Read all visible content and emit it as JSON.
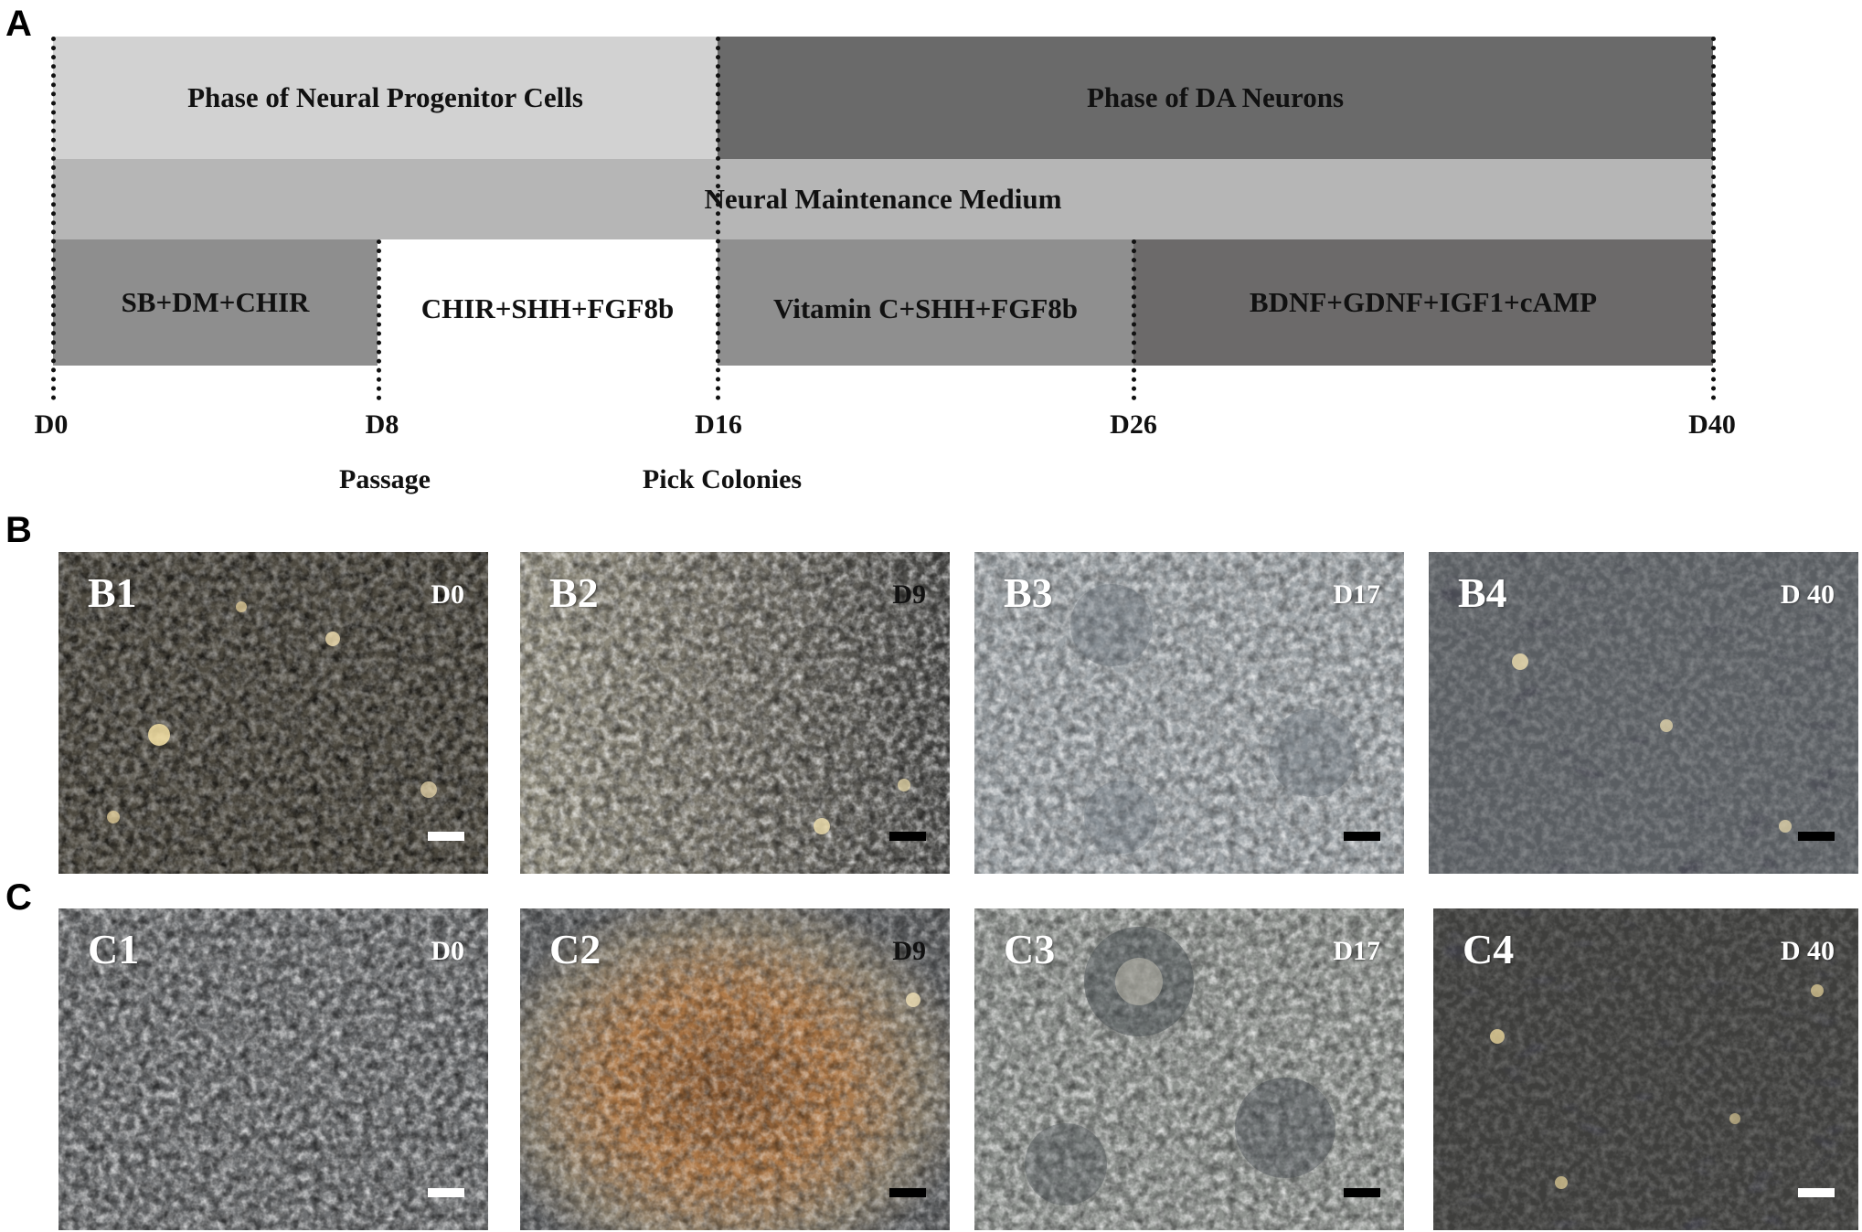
{
  "panel_a": {
    "letter": "A",
    "phase_progenitor": "Phase of Neural Progenitor Cells",
    "phase_da": "Phase of DA Neurons",
    "maintenance": "Neural Maintenance Medium",
    "stages": [
      {
        "label": "SB+DM+CHIR",
        "color": "#8e8e8e"
      },
      {
        "label": "CHIR+SHH+FGF8b",
        "color": "#ffffff"
      },
      {
        "label": "Vitamin C+SHH+FGF8b",
        "color": "#8f8f8f"
      },
      {
        "label": "BDNF+GDNF+IGF1+cAMP",
        "color": "#6c6a6a"
      }
    ],
    "days": [
      "D0",
      "D8",
      "D16",
      "D26",
      "D40"
    ],
    "events": [
      "Passage",
      "Pick Colonies"
    ],
    "colors": {
      "phase_progenitor": "#d2d2d2",
      "phase_da": "#6a6a6a",
      "maintenance": "#b6b6b6"
    }
  },
  "panel_b": {
    "letter": "B",
    "images": [
      {
        "id": "B1",
        "day": "D0",
        "scale_bar": "white"
      },
      {
        "id": "B2",
        "day": "D9",
        "scale_bar": "black"
      },
      {
        "id": "B3",
        "day": "D17",
        "scale_bar": "black"
      },
      {
        "id": "B4",
        "day": "D 40",
        "scale_bar": "black"
      }
    ]
  },
  "panel_c": {
    "letter": "C",
    "images": [
      {
        "id": "C1",
        "day": "D0",
        "scale_bar": "white"
      },
      {
        "id": "C2",
        "day": "D9",
        "scale_bar": "black"
      },
      {
        "id": "C3",
        "day": "D17",
        "scale_bar": "black"
      },
      {
        "id": "C4",
        "day": "D 40",
        "scale_bar": "white"
      }
    ]
  }
}
